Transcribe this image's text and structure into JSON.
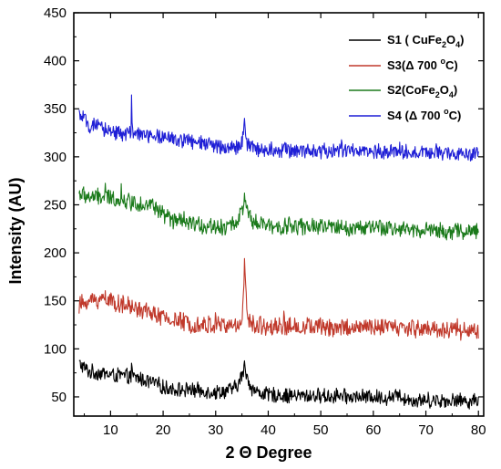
{
  "chart_data": {
    "type": "line",
    "title": "",
    "xlabel": "2 Θ Degree",
    "ylabel": "Intensity (AU)",
    "xlim": [
      3,
      81
    ],
    "ylim": [
      30,
      450
    ],
    "x_ticks": [
      10,
      20,
      30,
      40,
      50,
      60,
      70,
      80
    ],
    "y_ticks": [
      50,
      100,
      150,
      200,
      250,
      300,
      350,
      400,
      450
    ],
    "x_tick_labels": [
      "10",
      "20",
      "30",
      "40",
      "50",
      "60",
      "70",
      "80"
    ],
    "y_tick_labels": [
      "50",
      "100",
      "150",
      "200",
      "250",
      "300",
      "350",
      "400",
      "450"
    ],
    "grid": false,
    "legend_position": "top-right",
    "x_range": [
      4,
      80
    ],
    "series": [
      {
        "name": "S1 ( CuFe2O4)",
        "legend": {
          "main": "S1 ( CuFe",
          "sub1": "2",
          "mid": "O",
          "sub2": "4",
          "end": ")"
        },
        "color": "#000000",
        "x": [
          4,
          5,
          6,
          8,
          10,
          12,
          15,
          18,
          20,
          22,
          25,
          28,
          30,
          32,
          34,
          35,
          35.5,
          36,
          37,
          38,
          40,
          42,
          45,
          48,
          50,
          55,
          60,
          62,
          64,
          65,
          66,
          68,
          70,
          75,
          80
        ],
        "y": [
          85,
          80,
          76,
          75,
          73,
          72,
          70,
          65,
          60,
          58,
          57,
          56,
          55,
          56,
          60,
          72,
          82,
          70,
          58,
          55,
          52,
          52,
          51,
          51,
          51,
          50,
          50,
          49,
          50,
          52,
          48,
          46,
          47,
          46,
          46
        ]
      },
      {
        "name": "S3(Δ 700 °C)",
        "legend": {
          "main": "S3(Δ 700 ",
          "sup": "o",
          "end": "C)"
        },
        "color": "#c0392b",
        "x": [
          4,
          5,
          6,
          8,
          10,
          12,
          15,
          18,
          20,
          22,
          25,
          28,
          30,
          32,
          34,
          35,
          35.5,
          36,
          37,
          40,
          45,
          50,
          55,
          60,
          65,
          70,
          75,
          80
        ],
        "y": [
          145,
          148,
          150,
          152,
          150,
          146,
          142,
          137,
          132,
          130,
          127,
          125,
          125,
          124,
          124,
          130,
          190,
          130,
          125,
          124,
          123,
          123,
          122,
          122,
          122,
          121,
          120,
          118
        ]
      },
      {
        "name": "S2(CoFe2O4)",
        "legend": {
          "main": "S2(CoFe",
          "sub1": "2",
          "mid": "O",
          "sub2": "4",
          "end": ")"
        },
        "color": "#1b7a1b",
        "x": [
          4,
          5,
          6,
          8,
          10,
          12,
          15,
          18,
          20,
          22,
          25,
          28,
          30,
          32,
          34,
          35,
          35.5,
          36,
          37,
          38,
          40,
          45,
          50,
          55,
          60,
          65,
          70,
          75,
          80
        ],
        "y": [
          262,
          260,
          258,
          258,
          257,
          255,
          252,
          250,
          240,
          233,
          230,
          228,
          228,
          227,
          232,
          245,
          255,
          242,
          232,
          230,
          228,
          227,
          227,
          226,
          226,
          225,
          224,
          222,
          222
        ]
      },
      {
        "name": "S4 (Δ 700 °C)",
        "legend": {
          "main": "S4 (Δ 700 ",
          "sup": "o",
          "end": "C)"
        },
        "color": "#1f1fd6",
        "x": [
          4,
          5,
          6,
          8,
          10,
          12,
          14,
          16,
          18,
          20,
          22,
          25,
          28,
          30,
          32,
          34,
          35,
          35.5,
          36,
          37,
          40,
          45,
          50,
          55,
          60,
          65,
          70,
          75,
          80
        ],
        "y": [
          345,
          338,
          333,
          330,
          327,
          325,
          324,
          323,
          322,
          320,
          318,
          316,
          313,
          312,
          310,
          310,
          315,
          335,
          314,
          309,
          308,
          307,
          306,
          306,
          305,
          305,
          304,
          303,
          302
        ]
      }
    ]
  }
}
